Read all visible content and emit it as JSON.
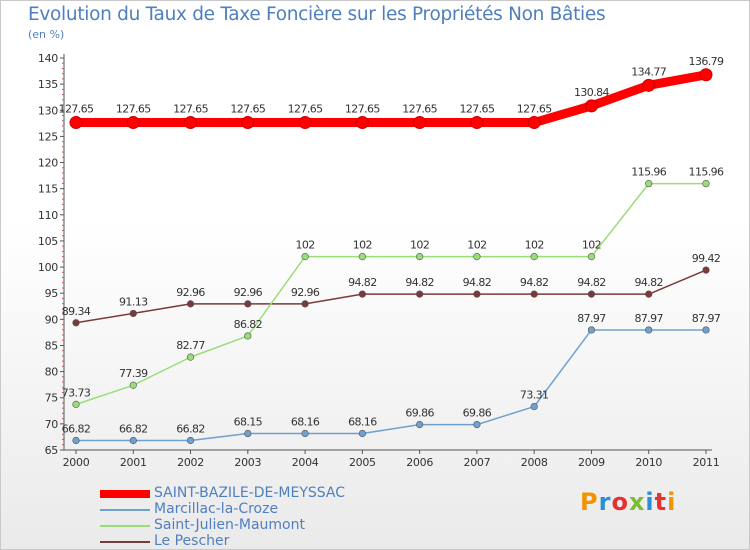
{
  "title": "Evolution du Taux de Taxe Foncière sur les Propriétés Non Bâties",
  "unit": "(en %)",
  "logo": "Proxiti",
  "chart_data": {
    "type": "line",
    "x": [
      "2000",
      "2001",
      "2002",
      "2003",
      "2004",
      "2005",
      "2006",
      "2007",
      "2008",
      "2009",
      "2010",
      "2011"
    ],
    "yticks": [
      65,
      70,
      75,
      80,
      85,
      90,
      95,
      100,
      105,
      110,
      115,
      120,
      125,
      130,
      135,
      140
    ],
    "ylim": [
      65,
      140
    ],
    "grid": false,
    "legend_position": "bottom-left",
    "series": [
      {
        "name": "SAINT-BAZILE-DE-MEYSSAC",
        "color": "#ff0000",
        "values": [
          127.65,
          127.65,
          127.65,
          127.65,
          127.65,
          127.65,
          127.65,
          127.65,
          127.65,
          130.84,
          134.77,
          136.79
        ],
        "labels": [
          "127.65",
          "127.65",
          "127.65",
          "127.65",
          "127.65",
          "127.65",
          "127.65",
          "127.65",
          "127.65",
          "130.84",
          "134.77",
          "136.79"
        ]
      },
      {
        "name": "Marcillac-la-Croze",
        "color": "#6fa0cf",
        "values": [
          66.82,
          66.82,
          66.82,
          68.15,
          68.16,
          68.16,
          69.86,
          69.86,
          73.31,
          87.97,
          87.97,
          87.97
        ],
        "labels": [
          "66.82",
          "66.82",
          "66.82",
          "68.15",
          "68.16",
          "68.16",
          "69.86",
          "69.86",
          "73.31",
          "87.97",
          "87.97",
          "87.97"
        ]
      },
      {
        "name": "Saint-Julien-Maumont",
        "color": "#99dd77",
        "values": [
          73.73,
          77.39,
          82.77,
          86.82,
          102,
          102,
          102,
          102,
          102,
          102,
          115.96,
          115.96
        ],
        "labels": [
          "73.73",
          "77.39",
          "82.77",
          "86.82",
          "102",
          "102",
          "102",
          "102",
          "102",
          "102",
          "115.96",
          "115.96"
        ]
      },
      {
        "name": "Le Pescher",
        "color": "#7a3a3a",
        "values": [
          89.34,
          91.13,
          92.96,
          92.96,
          92.96,
          94.82,
          94.82,
          94.82,
          94.82,
          94.82,
          94.82,
          99.42
        ],
        "labels": [
          "89.34",
          "91.13",
          "92.96",
          "92.96",
          "92.96",
          "94.82",
          "94.82",
          "94.82",
          "94.82",
          "94.82",
          "94.82",
          "99.42"
        ]
      }
    ]
  }
}
